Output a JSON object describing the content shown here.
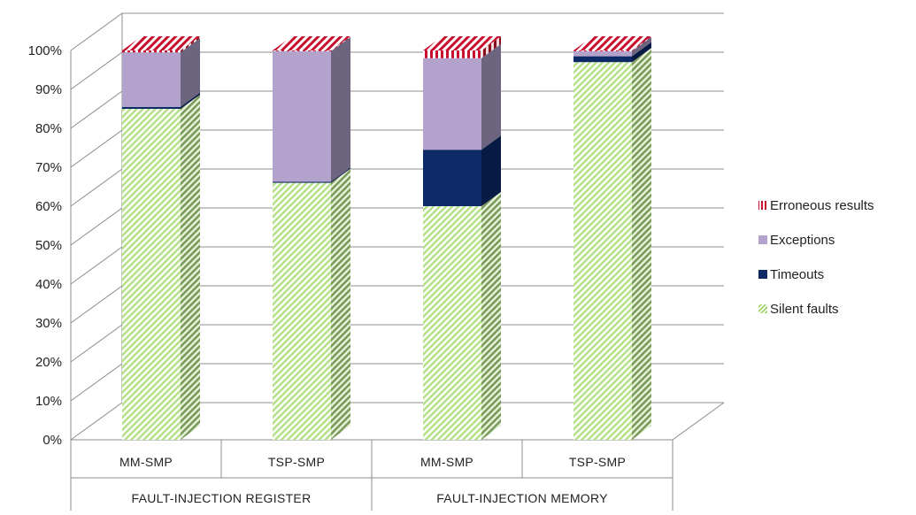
{
  "chart_data": {
    "type": "bar",
    "stacked": true,
    "three_d": true,
    "percent_scale": true,
    "categories": [
      "MM-SMP",
      "TSP-SMP",
      "MM-SMP",
      "TSP-SMP"
    ],
    "groups": [
      {
        "label": "FAULT-INJECTION REGISTER",
        "categories": [
          "MM-SMP",
          "TSP-SMP"
        ]
      },
      {
        "label": "FAULT-INJECTION MEMORY",
        "categories": [
          "MM-SMP",
          "TSP-SMP"
        ]
      }
    ],
    "series": [
      {
        "name": "Silent faults",
        "values": [
          85,
          66,
          60,
          97
        ],
        "color": "#b6e08a",
        "pattern": "diagonal-stripes"
      },
      {
        "name": "Timeouts",
        "values": [
          0.5,
          0.3,
          14.5,
          1.5
        ],
        "color": "#0d2a66",
        "pattern": "solid"
      },
      {
        "name": "Exceptions",
        "values": [
          14.0,
          33.5,
          23.5,
          1.3
        ],
        "color": "#b3a3cc",
        "pattern": "solid"
      },
      {
        "name": "Erroneous results",
        "values": [
          0.5,
          0.2,
          2.0,
          0.2
        ],
        "color": "#c8102e",
        "pattern": "vertical-stripes"
      }
    ],
    "legend_order": [
      "Erroneous results",
      "Exceptions",
      "Timeouts",
      "Silent faults"
    ],
    "ylim": [
      0,
      100
    ],
    "yticks": [
      "0%",
      "10%",
      "20%",
      "30%",
      "40%",
      "50%",
      "60%",
      "70%",
      "80%",
      "90%",
      "100%"
    ],
    "grid": true,
    "legend_position": "right",
    "title": "",
    "xlabel": "",
    "ylabel": ""
  }
}
